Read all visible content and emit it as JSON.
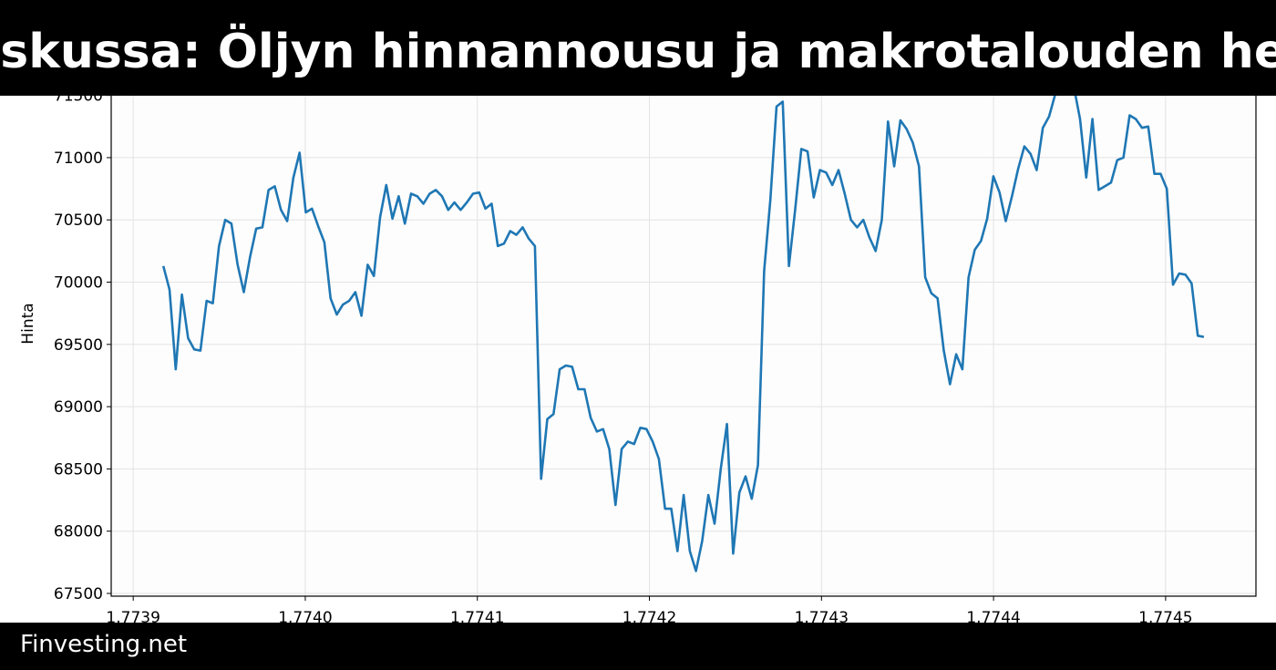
{
  "banner": {
    "title": "nskussa: Öljyn hinnannousu ja makrotalouden her"
  },
  "footer": {
    "brand": "Finvesting.net"
  },
  "chart_data": {
    "type": "line",
    "title": "",
    "xlabel": "",
    "ylabel": "Hinta",
    "xlim": [
      1.7738872,
      1.7745525
    ],
    "ylim": [
      67478,
      71922
    ],
    "grid": true,
    "line_color": "#1f77b4",
    "x_start": 1.77391748,
    "x_step": 3.6e-06,
    "xticks": [
      "1.7739",
      "1.7740",
      "1.7741",
      "1.7742",
      "1.7743",
      "1.7744",
      "1.7745"
    ],
    "xtick_values": [
      1.7739,
      1.774,
      1.7741,
      1.7742,
      1.7743,
      1.7744,
      1.7745
    ],
    "yticks": [
      "67500",
      "68000",
      "68500",
      "69000",
      "69500",
      "70000",
      "70500",
      "71000",
      "71500"
    ],
    "ytick_values": [
      67500,
      68000,
      68500,
      69000,
      69500,
      70000,
      70500,
      71000,
      71500
    ],
    "values": [
      70130,
      69940,
      69300,
      69900,
      69550,
      69460,
      69450,
      69850,
      69830,
      70290,
      70500,
      70470,
      70140,
      69920,
      70200,
      70430,
      70440,
      70740,
      70770,
      70580,
      70490,
      70840,
      71040,
      70560,
      70590,
      70450,
      70320,
      69870,
      69740,
      69820,
      69850,
      69920,
      69730,
      70140,
      70050,
      70520,
      70780,
      70510,
      70690,
      70470,
      70710,
      70690,
      70630,
      70710,
      70740,
      70690,
      70580,
      70640,
      70580,
      70640,
      70710,
      70720,
      70590,
      70630,
      70290,
      70310,
      70410,
      70380,
      70440,
      70350,
      70290,
      68420,
      68900,
      68940,
      69300,
      69330,
      69320,
      69140,
      69140,
      68910,
      68800,
      68820,
      68660,
      68210,
      68660,
      68720,
      68700,
      68830,
      68820,
      68720,
      68580,
      68180,
      68180,
      67840,
      68290,
      67840,
      67680,
      67920,
      68290,
      68060,
      68500,
      68860,
      67820,
      68310,
      68440,
      68260,
      68530,
      70090,
      70660,
      71410,
      71450,
      70130,
      70580,
      71070,
      71050,
      70680,
      70900,
      70880,
      70780,
      70900,
      70710,
      70500,
      70440,
      70500,
      70360,
      70250,
      70500,
      71290,
      70930,
      71300,
      71230,
      71120,
      70930,
      70040,
      69910,
      69870,
      69450,
      69180,
      69420,
      69300,
      70040,
      70260,
      70330,
      70510,
      70850,
      70720,
      70490,
      70690,
      70910,
      71090,
      71030,
      70900,
      71240,
      71330,
      71510,
      71640,
      71720,
      71570,
      71310,
      70840,
      71310,
      70740,
      70770,
      70800,
      70980,
      71000,
      71340,
      71310,
      71240,
      71250,
      70870,
      70870,
      70750,
      69980,
      70070,
      70060,
      69990,
      69570,
      69560
    ]
  }
}
